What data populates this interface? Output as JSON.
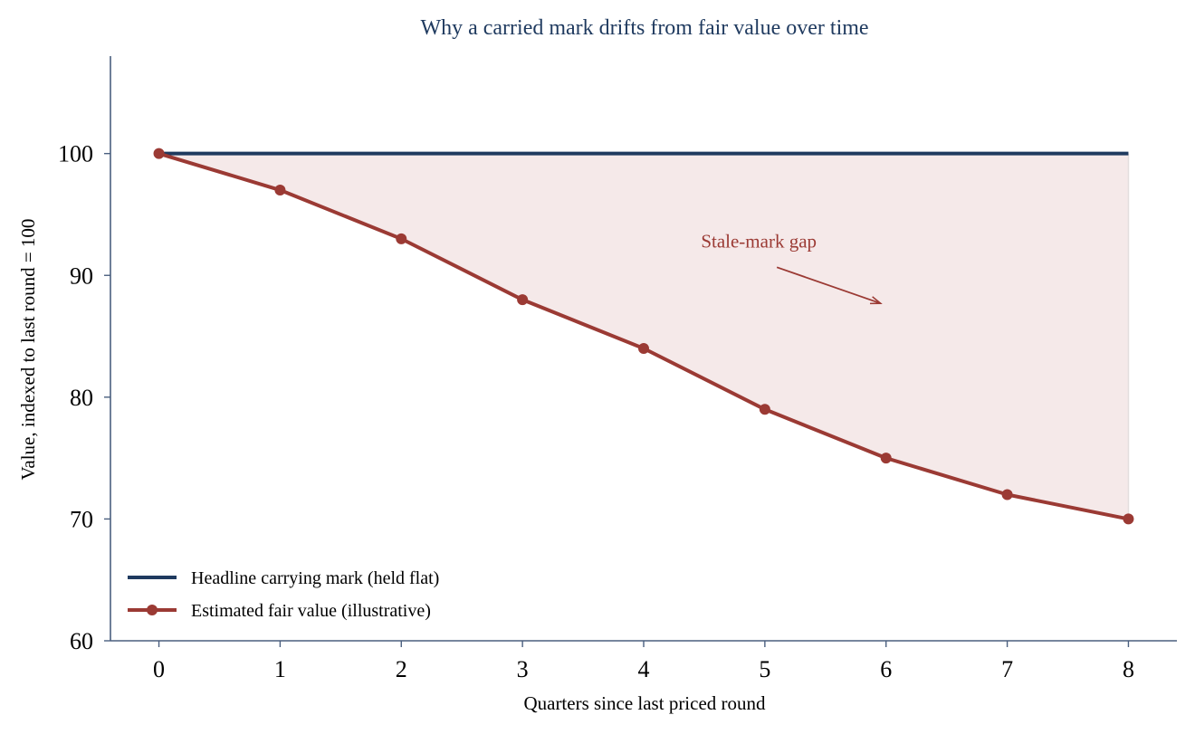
{
  "chart_data": {
    "type": "line",
    "title": "Why a carried mark drifts from fair value over time",
    "xlabel": "Quarters since last priced round",
    "ylabel": "Value, indexed to last round = 100",
    "x": [
      0,
      1,
      2,
      3,
      4,
      5,
      6,
      7,
      8
    ],
    "xticks": [
      "0",
      "1",
      "2",
      "3",
      "4",
      "5",
      "6",
      "7",
      "8"
    ],
    "yticks": [
      "60",
      "70",
      "80",
      "90",
      "100"
    ],
    "xlim": [
      -0.4,
      8.4
    ],
    "ylim": [
      60,
      108
    ],
    "grid": false,
    "legend_position": "lower-left",
    "series": [
      {
        "name": "Headline carrying mark (held flat)",
        "values": [
          100,
          100,
          100,
          100,
          100,
          100,
          100,
          100,
          100
        ],
        "color": "#1f3a5f",
        "markers": false
      },
      {
        "name": "Estimated fair value (illustrative)",
        "values": [
          100,
          97,
          93,
          88,
          84,
          79,
          75,
          72,
          70
        ],
        "color": "#9b3a34",
        "markers": true
      }
    ],
    "fill_between": {
      "color": "#f5e9e9"
    },
    "annotation": {
      "text": "Stale-mark gap",
      "color": "#9b3a34",
      "text_at": [
        4.95,
        92.3
      ],
      "arrow_to": [
        6.0,
        87.7
      ]
    },
    "colors": {
      "axis": "#4a5f7f",
      "title": "#1f3a5f"
    }
  }
}
